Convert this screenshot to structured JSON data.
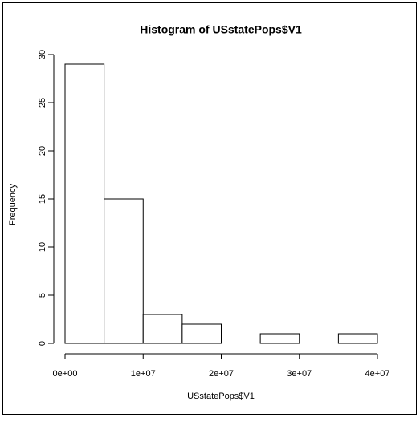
{
  "chart_data": {
    "type": "histogram",
    "title": "Histogram of USstatePops$V1",
    "x_label": "USstatePops$V1",
    "y_label": "Frequency",
    "bins": [
      0,
      5000000,
      10000000,
      15000000,
      20000000,
      25000000,
      30000000,
      35000000,
      40000000
    ],
    "values": [
      29,
      15,
      3,
      2,
      0,
      1,
      0,
      1
    ],
    "color": "#ffffff",
    "xlim": [
      0,
      40000000
    ],
    "xticks": [
      {
        "value": 0,
        "label": "0e+00"
      },
      {
        "value": 10000000,
        "label": "1e+07"
      },
      {
        "value": 20000000,
        "label": "2e+07"
      },
      {
        "value": 30000000,
        "label": "3e+07"
      },
      {
        "value": 40000000,
        "label": "4e+07"
      }
    ],
    "ylim": [
      0,
      30
    ],
    "yticks": [
      0,
      5,
      10,
      15,
      20,
      25,
      30
    ]
  }
}
